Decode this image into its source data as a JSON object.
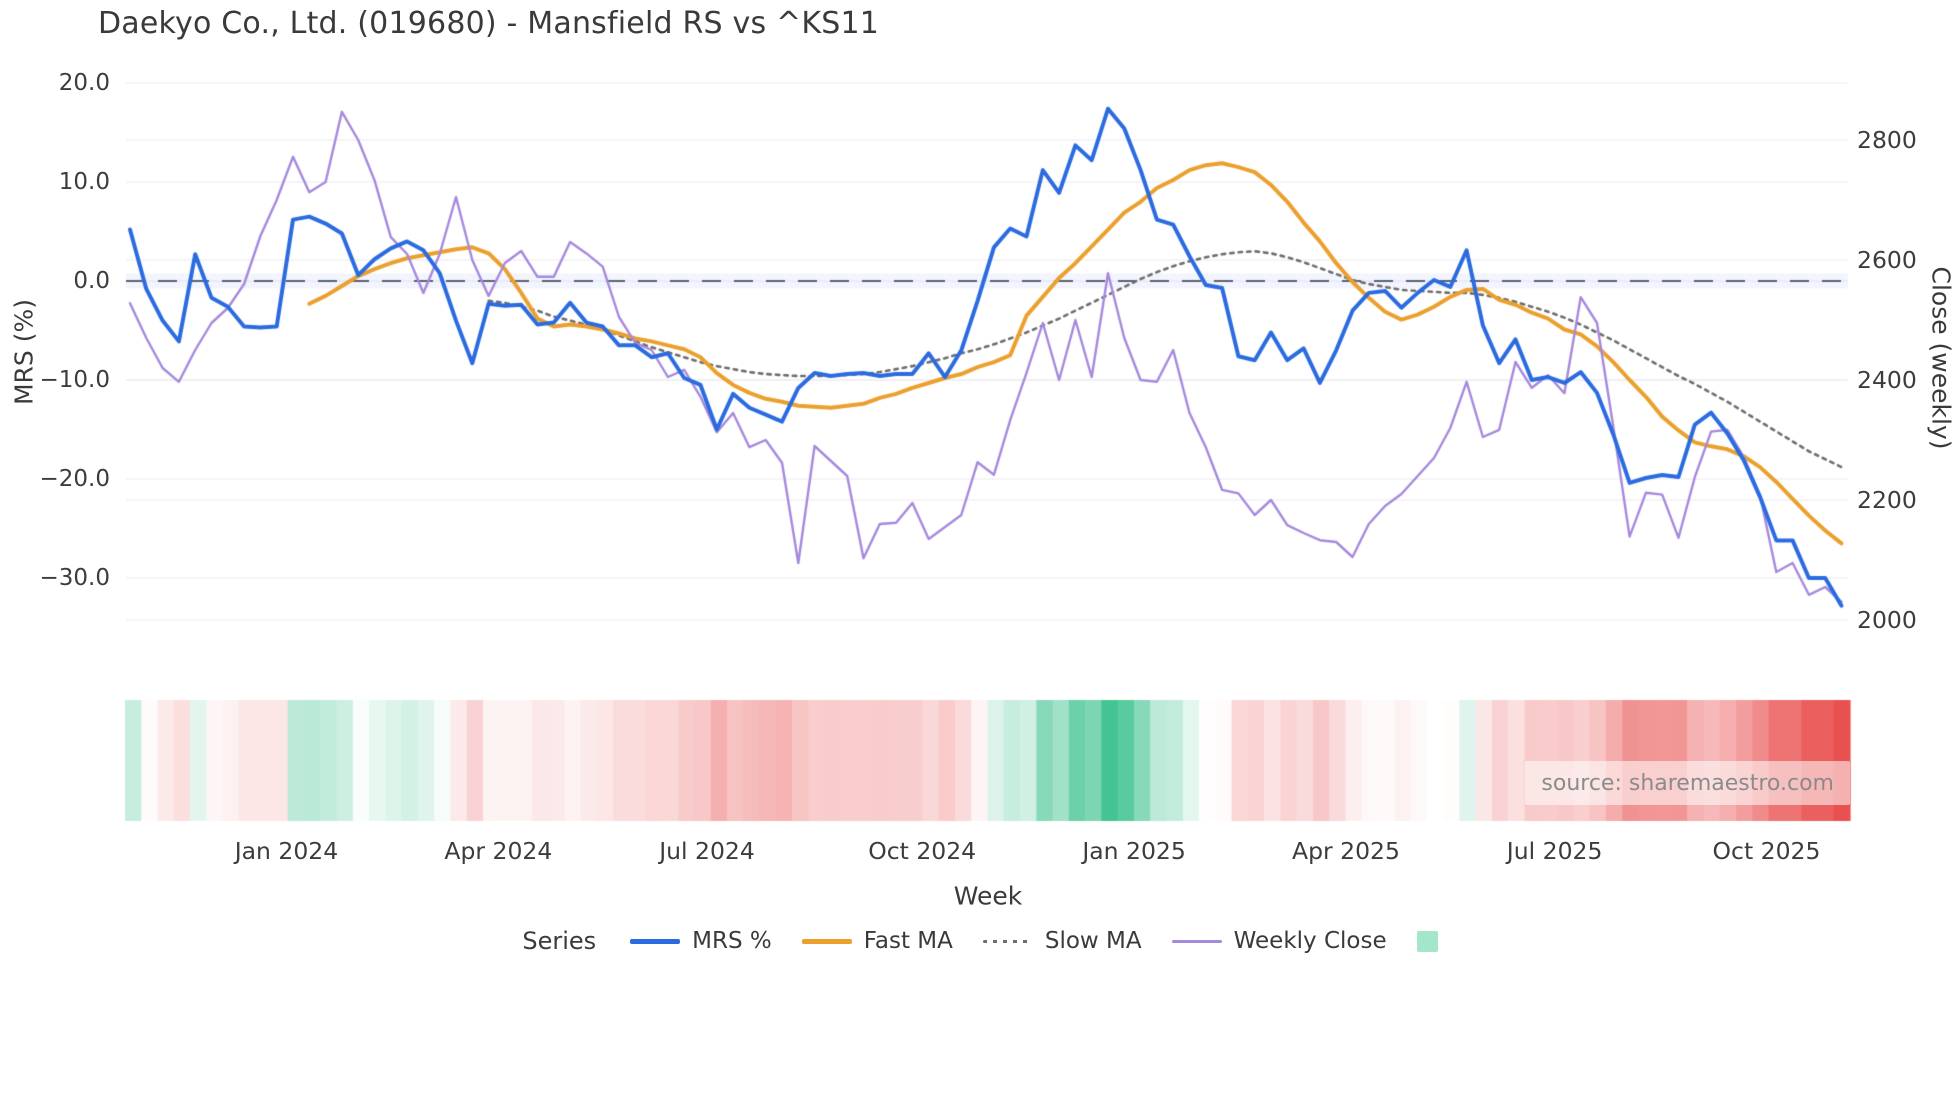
{
  "title": "Daekyo Co., Ltd. (019680) - Mansfield RS vs ^KS11",
  "watermark": {
    "text": "source: sharemaestro.com",
    "color": "#8b8b8b"
  },
  "axes": {
    "left": {
      "label": "MRS (%)",
      "tick_labels": [
        "20.0",
        "10.0",
        "0.0",
        "−10.0",
        "−20.0",
        "−30.0"
      ],
      "tick_values": [
        20,
        10,
        0,
        -10,
        -20,
        -30
      ]
    },
    "right": {
      "label": "Close (weekly)",
      "tick_labels": [
        "2800",
        "2600",
        "2400",
        "2200",
        "2000"
      ],
      "tick_values": [
        2800,
        2600,
        2400,
        2200,
        2000
      ]
    },
    "x": {
      "label": "Week"
    }
  },
  "legend": {
    "title": "Series",
    "items": [
      {
        "label": "MRS %",
        "color": "#2b6be0",
        "style": "solid",
        "thickness": 5
      },
      {
        "label": "Fast MA",
        "color": "#eba02e",
        "style": "solid",
        "thickness": 5
      },
      {
        "label": "Slow MA",
        "color": "#6e6e6e",
        "style": "dotted",
        "thickness": 3
      },
      {
        "label": "Weekly Close",
        "color": "#a689dd",
        "style": "solid",
        "thickness": 3
      }
    ],
    "heatmap_swatch_color": "#a3e6ca"
  },
  "colors": {
    "mrs_line": "#2b6be0",
    "fast_ma": "#eba02e",
    "slow_ma": "#6e6e6e",
    "weekly_close": "#a689dd",
    "zero_line": "#5a6170",
    "gridline": "#ebebf1",
    "heat_positive": "#3ec28f",
    "heat_negative": "#e94f4f"
  },
  "chart_data": {
    "type": "line",
    "title": "Daekyo Co., Ltd. (019680) - Mansfield RS vs ^KS11",
    "xlabel": "Week",
    "ylabel_left": "MRS (%)",
    "ylabel_right": "Close (weekly)",
    "weeks": 106,
    "x_ticks": [
      {
        "label": "Jan 2024",
        "week": 9.6
      },
      {
        "label": "Apr 2024",
        "week": 22.6
      },
      {
        "label": "Jul 2024",
        "week": 35.4
      },
      {
        "label": "Oct 2024",
        "week": 48.6
      },
      {
        "label": "Jan 2025",
        "week": 61.6
      },
      {
        "label": "Apr 2025",
        "week": 74.6
      },
      {
        "label": "Jul 2025",
        "week": 87.4
      },
      {
        "label": "Oct 2025",
        "week": 100.4
      }
    ],
    "y_left_range": [
      -35,
      22
    ],
    "y_right_range": [
      1960,
      2900
    ],
    "zero_line": {
      "value": 0,
      "axis": "left",
      "style": "dashed"
    },
    "series": [
      {
        "name": "MRS %",
        "axis": "left",
        "color": "#2b6be0",
        "style": "solid",
        "width": 4,
        "values": [
          5.2,
          -0.8,
          -4.0,
          -6.1,
          2.7,
          -1.7,
          -2.6,
          -4.6,
          -4.7,
          -4.6,
          6.2,
          6.5,
          5.8,
          4.8,
          0.6,
          2.2,
          3.3,
          4.0,
          3.1,
          0.8,
          -4.0,
          -8.3,
          -2.3,
          -2.5,
          -2.4,
          -4.4,
          -4.2,
          -2.2,
          -4.2,
          -4.6,
          -6.5,
          -6.5,
          -7.7,
          -7.3,
          -9.8,
          -10.5,
          -15.0,
          -11.4,
          -12.8,
          -13.5,
          -14.2,
          -10.8,
          -9.3,
          -9.6,
          -9.4,
          -9.3,
          -9.6,
          -9.4,
          -9.4,
          -7.3,
          -9.7,
          -7.0,
          -2.0,
          3.4,
          5.3,
          4.5,
          11.2,
          8.9,
          13.7,
          12.2,
          17.4,
          15.4,
          11.2,
          6.2,
          5.7,
          2.5,
          -0.4,
          -0.7,
          -7.6,
          -8.0,
          -5.2,
          -8.0,
          -6.8,
          -10.3,
          -7.0,
          -3.0,
          -1.2,
          -1.0,
          -2.7,
          -1.2,
          0.1,
          -0.6,
          3.1,
          -4.5,
          -8.3,
          -5.9,
          -10.0,
          -9.7,
          -10.3,
          -9.2,
          -11.3,
          -15.5,
          -20.4,
          -19.9,
          -19.6,
          -19.8,
          -14.5,
          -13.3,
          -15.4,
          -18.1,
          -21.8,
          -26.2,
          -26.2,
          -30.0,
          -30.0,
          -32.8
        ]
      },
      {
        "name": "Fast MA",
        "axis": "left",
        "color": "#eba02e",
        "style": "solid",
        "width": 4,
        "values": [
          null,
          null,
          null,
          null,
          null,
          null,
          null,
          null,
          null,
          null,
          null,
          -2.3,
          -1.5,
          -0.5,
          0.5,
          1.2,
          1.8,
          2.3,
          2.6,
          2.9,
          3.2,
          3.4,
          2.8,
          1.2,
          -1.2,
          -3.8,
          -4.6,
          -4.4,
          -4.6,
          -4.9,
          -5.3,
          -5.8,
          -6.1,
          -6.5,
          -6.9,
          -7.7,
          -9.3,
          -10.5,
          -11.3,
          -11.9,
          -12.2,
          -12.6,
          -12.7,
          -12.8,
          -12.6,
          -12.4,
          -11.8,
          -11.4,
          -10.8,
          -10.3,
          -9.8,
          -9.4,
          -8.7,
          -8.2,
          -7.5,
          -3.5,
          -1.6,
          0.3,
          1.8,
          3.5,
          5.2,
          6.9,
          8.0,
          9.4,
          10.2,
          11.2,
          11.7,
          11.9,
          11.5,
          11.0,
          9.7,
          8.0,
          5.9,
          4.0,
          1.8,
          -0.1,
          -1.7,
          -3.1,
          -3.9,
          -3.4,
          -2.6,
          -1.6,
          -0.9,
          -0.8,
          -1.9,
          -2.4,
          -3.2,
          -3.8,
          -4.9,
          -5.4,
          -6.6,
          -8.2,
          -10.0,
          -11.7,
          -13.7,
          -15.1,
          -16.3,
          -16.7,
          -17.0,
          -17.7,
          -18.8,
          -20.3,
          -22.0,
          -23.7,
          -25.2,
          -26.5
        ]
      },
      {
        "name": "Slow MA",
        "axis": "left",
        "color": "#6e6e6e",
        "style": "dotted",
        "width": 2.6,
        "values": [
          null,
          null,
          null,
          null,
          null,
          null,
          null,
          null,
          null,
          null,
          null,
          null,
          null,
          null,
          null,
          null,
          null,
          null,
          null,
          null,
          null,
          null,
          -2.0,
          -2.2,
          -2.6,
          -3.0,
          -3.6,
          -4.0,
          -4.4,
          -4.9,
          -5.5,
          -6.1,
          -6.7,
          -7.2,
          -7.7,
          -8.2,
          -8.6,
          -8.9,
          -9.2,
          -9.4,
          -9.5,
          -9.6,
          -9.6,
          -9.6,
          -9.5,
          -9.4,
          -9.2,
          -8.9,
          -8.6,
          -8.2,
          -7.8,
          -7.3,
          -6.9,
          -6.4,
          -5.8,
          -5.2,
          -4.5,
          -3.8,
          -3.0,
          -2.2,
          -1.4,
          -0.6,
          0.2,
          0.9,
          1.5,
          2.0,
          2.4,
          2.7,
          2.9,
          3.0,
          2.8,
          2.4,
          1.9,
          1.3,
          0.7,
          0.1,
          -0.3,
          -0.6,
          -0.9,
          -1.0,
          -1.1,
          -1.2,
          -1.2,
          -1.4,
          -1.7,
          -2.1,
          -2.6,
          -3.1,
          -3.7,
          -4.4,
          -5.2,
          -6.0,
          -6.9,
          -7.8,
          -8.7,
          -9.6,
          -10.4,
          -11.3,
          -12.2,
          -13.2,
          -14.2,
          -15.2,
          -16.2,
          -17.2,
          -18.0,
          -18.8
        ]
      },
      {
        "name": "Weekly Close",
        "axis": "right",
        "color": "#a689dd",
        "style": "solid",
        "width": 2.4,
        "values": [
          2528,
          2470,
          2420,
          2397,
          2450,
          2495,
          2520,
          2560,
          2640,
          2700,
          2772,
          2713,
          2730,
          2847,
          2800,
          2733,
          2638,
          2610,
          2545,
          2610,
          2705,
          2600,
          2540,
          2595,
          2615,
          2572,
          2572,
          2630,
          2611,
          2589,
          2505,
          2462,
          2450,
          2405,
          2417,
          2372,
          2313,
          2345,
          2288,
          2300,
          2262,
          2095,
          2290,
          2265,
          2240,
          2103,
          2160,
          2162,
          2195,
          2135,
          2155,
          2175,
          2263,
          2242,
          2333,
          2412,
          2495,
          2400,
          2500,
          2405,
          2578,
          2470,
          2400,
          2397,
          2450,
          2345,
          2288,
          2217,
          2211,
          2175,
          2200,
          2158,
          2145,
          2133,
          2130,
          2105,
          2160,
          2190,
          2210,
          2240,
          2270,
          2320,
          2397,
          2305,
          2317,
          2430,
          2387,
          2408,
          2378,
          2538,
          2495,
          2322,
          2139,
          2212,
          2209,
          2137,
          2238,
          2314,
          2317,
          2272,
          2208,
          2080,
          2095,
          2042,
          2055,
          2030
        ]
      }
    ],
    "heatmap": {
      "based_on": "MRS %",
      "positive_color": "#3ec28f",
      "negative_color": "#e94f4f",
      "positive_max": 18,
      "negative_max": 33
    }
  }
}
